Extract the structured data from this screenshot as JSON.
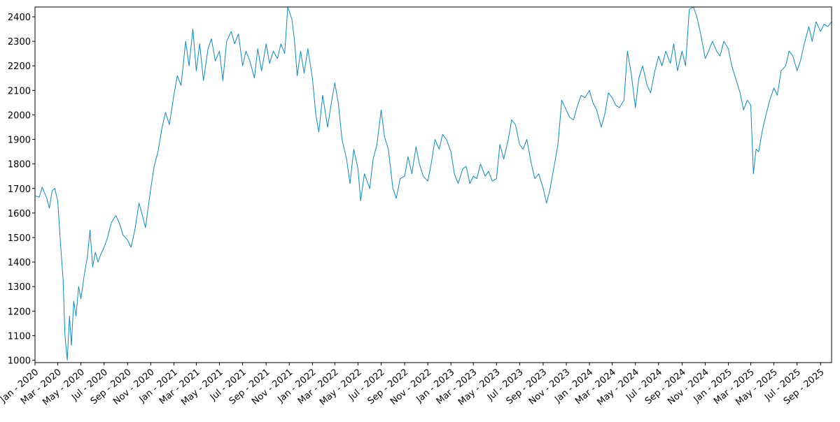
{
  "chart_data": {
    "type": "line",
    "title": "",
    "xlabel": "",
    "ylabel": "",
    "grid": false,
    "legend": false,
    "ylim": [
      990,
      2440
    ],
    "xlim": [
      "2020-01-01",
      "2025-09-30"
    ],
    "y_ticks": [
      1000,
      1100,
      1200,
      1300,
      1400,
      1500,
      1600,
      1700,
      1800,
      1900,
      2000,
      2100,
      2200,
      2300,
      2400
    ],
    "x_ticks": [
      {
        "date": "2020-01-01",
        "label": "Jan - 2020"
      },
      {
        "date": "2020-03-01",
        "label": "Mar - 2020"
      },
      {
        "date": "2020-05-01",
        "label": "May - 2020"
      },
      {
        "date": "2020-07-01",
        "label": "Jul - 2020"
      },
      {
        "date": "2020-09-01",
        "label": "Sep - 2020"
      },
      {
        "date": "2020-11-01",
        "label": "Nov - 2020"
      },
      {
        "date": "2021-01-01",
        "label": "Jan - 2021"
      },
      {
        "date": "2021-03-01",
        "label": "Mar - 2021"
      },
      {
        "date": "2021-05-01",
        "label": "May - 2021"
      },
      {
        "date": "2021-07-01",
        "label": "Jul - 2021"
      },
      {
        "date": "2021-09-01",
        "label": "Sep - 2021"
      },
      {
        "date": "2021-11-01",
        "label": "Nov - 2021"
      },
      {
        "date": "2022-01-01",
        "label": "Jan - 2022"
      },
      {
        "date": "2022-03-01",
        "label": "Mar - 2022"
      },
      {
        "date": "2022-05-01",
        "label": "May - 2022"
      },
      {
        "date": "2022-07-01",
        "label": "Jul - 2022"
      },
      {
        "date": "2022-09-01",
        "label": "Sep - 2022"
      },
      {
        "date": "2022-11-01",
        "label": "Nov - 2022"
      },
      {
        "date": "2023-01-01",
        "label": "Jan - 2023"
      },
      {
        "date": "2023-03-01",
        "label": "Mar - 2023"
      },
      {
        "date": "2023-05-01",
        "label": "May - 2023"
      },
      {
        "date": "2023-07-01",
        "label": "Jul - 2023"
      },
      {
        "date": "2023-09-01",
        "label": "Sep - 2023"
      },
      {
        "date": "2023-11-01",
        "label": "Nov - 2023"
      },
      {
        "date": "2024-01-01",
        "label": "Jan - 2024"
      },
      {
        "date": "2024-03-01",
        "label": "Mar - 2024"
      },
      {
        "date": "2024-05-01",
        "label": "May - 2024"
      },
      {
        "date": "2024-07-01",
        "label": "Jul - 2024"
      },
      {
        "date": "2024-09-01",
        "label": "Sep - 2024"
      },
      {
        "date": "2024-11-01",
        "label": "Nov - 2024"
      },
      {
        "date": "2025-01-01",
        "label": "Jan - 2025"
      },
      {
        "date": "2025-03-01",
        "label": "Mar - 2025"
      },
      {
        "date": "2025-05-01",
        "label": "May - 2025"
      },
      {
        "date": "2025-07-01",
        "label": "Jul - 2025"
      },
      {
        "date": "2025-09-01",
        "label": "Sep - 2025"
      }
    ],
    "series": [
      {
        "color": "#0a8ac6",
        "points": [
          [
            "2020-01-01",
            1670
          ],
          [
            "2020-01-12",
            1665
          ],
          [
            "2020-01-20",
            1705
          ],
          [
            "2020-02-01",
            1660
          ],
          [
            "2020-02-08",
            1620
          ],
          [
            "2020-02-15",
            1690
          ],
          [
            "2020-02-22",
            1700
          ],
          [
            "2020-03-01",
            1650
          ],
          [
            "2020-03-08",
            1480
          ],
          [
            "2020-03-15",
            1330
          ],
          [
            "2020-03-20",
            1100
          ],
          [
            "2020-03-26",
            1000
          ],
          [
            "2020-04-01",
            1180
          ],
          [
            "2020-04-06",
            1060
          ],
          [
            "2020-04-12",
            1240
          ],
          [
            "2020-04-18",
            1180
          ],
          [
            "2020-04-25",
            1300
          ],
          [
            "2020-05-01",
            1250
          ],
          [
            "2020-05-10",
            1350
          ],
          [
            "2020-05-18",
            1420
          ],
          [
            "2020-05-25",
            1530
          ],
          [
            "2020-06-01",
            1380
          ],
          [
            "2020-06-08",
            1440
          ],
          [
            "2020-06-15",
            1400
          ],
          [
            "2020-06-22",
            1430
          ],
          [
            "2020-07-01",
            1460
          ],
          [
            "2020-07-10",
            1500
          ],
          [
            "2020-07-20",
            1560
          ],
          [
            "2020-08-01",
            1590
          ],
          [
            "2020-08-10",
            1560
          ],
          [
            "2020-08-20",
            1510
          ],
          [
            "2020-09-01",
            1490
          ],
          [
            "2020-09-10",
            1460
          ],
          [
            "2020-09-20",
            1530
          ],
          [
            "2020-10-01",
            1640
          ],
          [
            "2020-10-10",
            1590
          ],
          [
            "2020-10-18",
            1540
          ],
          [
            "2020-11-01",
            1700
          ],
          [
            "2020-11-10",
            1790
          ],
          [
            "2020-11-20",
            1850
          ],
          [
            "2020-12-01",
            1950
          ],
          [
            "2020-12-10",
            2010
          ],
          [
            "2020-12-20",
            1960
          ],
          [
            "2021-01-01",
            2080
          ],
          [
            "2021-01-10",
            2160
          ],
          [
            "2021-01-20",
            2120
          ],
          [
            "2021-02-01",
            2300
          ],
          [
            "2021-02-10",
            2200
          ],
          [
            "2021-02-20",
            2350
          ],
          [
            "2021-03-01",
            2180
          ],
          [
            "2021-03-10",
            2290
          ],
          [
            "2021-03-20",
            2140
          ],
          [
            "2021-04-01",
            2270
          ],
          [
            "2021-04-10",
            2310
          ],
          [
            "2021-04-20",
            2220
          ],
          [
            "2021-05-01",
            2260
          ],
          [
            "2021-05-10",
            2140
          ],
          [
            "2021-05-20",
            2300
          ],
          [
            "2021-06-01",
            2340
          ],
          [
            "2021-06-10",
            2290
          ],
          [
            "2021-06-20",
            2330
          ],
          [
            "2021-07-01",
            2200
          ],
          [
            "2021-07-10",
            2260
          ],
          [
            "2021-07-20",
            2220
          ],
          [
            "2021-08-01",
            2150
          ],
          [
            "2021-08-10",
            2270
          ],
          [
            "2021-08-20",
            2180
          ],
          [
            "2021-09-01",
            2290
          ],
          [
            "2021-09-10",
            2210
          ],
          [
            "2021-09-20",
            2260
          ],
          [
            "2021-10-01",
            2230
          ],
          [
            "2021-10-10",
            2290
          ],
          [
            "2021-10-20",
            2250
          ],
          [
            "2021-10-28",
            2440
          ],
          [
            "2021-11-08",
            2390
          ],
          [
            "2021-11-15",
            2300
          ],
          [
            "2021-11-22",
            2160
          ],
          [
            "2021-12-01",
            2260
          ],
          [
            "2021-12-10",
            2170
          ],
          [
            "2021-12-20",
            2270
          ],
          [
            "2022-01-01",
            2150
          ],
          [
            "2022-01-10",
            2000
          ],
          [
            "2022-01-18",
            1930
          ],
          [
            "2022-01-28",
            2080
          ],
          [
            "2022-02-10",
            1950
          ],
          [
            "2022-02-20",
            2050
          ],
          [
            "2022-03-01",
            2130
          ],
          [
            "2022-03-10",
            2050
          ],
          [
            "2022-03-20",
            1900
          ],
          [
            "2022-04-01",
            1820
          ],
          [
            "2022-04-10",
            1720
          ],
          [
            "2022-04-20",
            1860
          ],
          [
            "2022-05-01",
            1780
          ],
          [
            "2022-05-08",
            1650
          ],
          [
            "2022-05-18",
            1760
          ],
          [
            "2022-06-01",
            1700
          ],
          [
            "2022-06-10",
            1820
          ],
          [
            "2022-06-20",
            1880
          ],
          [
            "2022-07-01",
            2020
          ],
          [
            "2022-07-10",
            1910
          ],
          [
            "2022-07-20",
            1860
          ],
          [
            "2022-08-01",
            1700
          ],
          [
            "2022-08-10",
            1660
          ],
          [
            "2022-08-20",
            1740
          ],
          [
            "2022-09-01",
            1750
          ],
          [
            "2022-09-10",
            1830
          ],
          [
            "2022-09-20",
            1760
          ],
          [
            "2022-10-01",
            1870
          ],
          [
            "2022-10-10",
            1800
          ],
          [
            "2022-10-20",
            1750
          ],
          [
            "2022-11-01",
            1730
          ],
          [
            "2022-11-10",
            1800
          ],
          [
            "2022-11-20",
            1900
          ],
          [
            "2022-12-01",
            1860
          ],
          [
            "2022-12-10",
            1920
          ],
          [
            "2022-12-20",
            1900
          ],
          [
            "2023-01-01",
            1850
          ],
          [
            "2023-01-10",
            1760
          ],
          [
            "2023-01-20",
            1720
          ],
          [
            "2023-02-01",
            1780
          ],
          [
            "2023-02-10",
            1790
          ],
          [
            "2023-02-20",
            1720
          ],
          [
            "2023-03-01",
            1750
          ],
          [
            "2023-03-10",
            1740
          ],
          [
            "2023-03-20",
            1800
          ],
          [
            "2023-04-01",
            1750
          ],
          [
            "2023-04-10",
            1770
          ],
          [
            "2023-04-20",
            1730
          ],
          [
            "2023-05-01",
            1740
          ],
          [
            "2023-05-10",
            1880
          ],
          [
            "2023-05-20",
            1820
          ],
          [
            "2023-06-01",
            1900
          ],
          [
            "2023-06-10",
            1980
          ],
          [
            "2023-06-20",
            1960
          ],
          [
            "2023-07-01",
            1880
          ],
          [
            "2023-07-10",
            1860
          ],
          [
            "2023-07-20",
            1900
          ],
          [
            "2023-08-01",
            1800
          ],
          [
            "2023-08-10",
            1740
          ],
          [
            "2023-08-20",
            1760
          ],
          [
            "2023-09-01",
            1700
          ],
          [
            "2023-09-10",
            1640
          ],
          [
            "2023-09-18",
            1690
          ],
          [
            "2023-10-01",
            1800
          ],
          [
            "2023-10-10",
            1880
          ],
          [
            "2023-10-20",
            2060
          ],
          [
            "2023-11-01",
            2020
          ],
          [
            "2023-11-10",
            1990
          ],
          [
            "2023-11-20",
            1980
          ],
          [
            "2023-12-01",
            2040
          ],
          [
            "2023-12-10",
            2080
          ],
          [
            "2023-12-20",
            2070
          ],
          [
            "2024-01-01",
            2100
          ],
          [
            "2024-01-10",
            2050
          ],
          [
            "2024-01-20",
            2020
          ],
          [
            "2024-02-01",
            1950
          ],
          [
            "2024-02-10",
            2000
          ],
          [
            "2024-02-20",
            2090
          ],
          [
            "2024-03-01",
            2070
          ],
          [
            "2024-03-10",
            2040
          ],
          [
            "2024-03-20",
            2030
          ],
          [
            "2024-04-01",
            2060
          ],
          [
            "2024-04-10",
            2260
          ],
          [
            "2024-04-20",
            2170
          ],
          [
            "2024-05-01",
            2030
          ],
          [
            "2024-05-10",
            2150
          ],
          [
            "2024-05-20",
            2200
          ],
          [
            "2024-06-01",
            2120
          ],
          [
            "2024-06-10",
            2090
          ],
          [
            "2024-06-20",
            2170
          ],
          [
            "2024-07-01",
            2240
          ],
          [
            "2024-07-10",
            2200
          ],
          [
            "2024-07-20",
            2260
          ],
          [
            "2024-08-01",
            2210
          ],
          [
            "2024-08-10",
            2290
          ],
          [
            "2024-08-20",
            2180
          ],
          [
            "2024-09-01",
            2260
          ],
          [
            "2024-09-10",
            2200
          ],
          [
            "2024-09-20",
            2430
          ],
          [
            "2024-10-01",
            2440
          ],
          [
            "2024-10-10",
            2400
          ],
          [
            "2024-10-20",
            2330
          ],
          [
            "2024-11-01",
            2230
          ],
          [
            "2024-11-10",
            2260
          ],
          [
            "2024-11-20",
            2300
          ],
          [
            "2024-12-01",
            2260
          ],
          [
            "2024-12-10",
            2240
          ],
          [
            "2024-12-20",
            2300
          ],
          [
            "2025-01-01",
            2270
          ],
          [
            "2025-01-10",
            2200
          ],
          [
            "2025-01-20",
            2150
          ],
          [
            "2025-02-01",
            2090
          ],
          [
            "2025-02-10",
            2020
          ],
          [
            "2025-02-20",
            2060
          ],
          [
            "2025-03-01",
            2040
          ],
          [
            "2025-03-08",
            1760
          ],
          [
            "2025-03-15",
            1860
          ],
          [
            "2025-03-22",
            1850
          ],
          [
            "2025-04-01",
            1940
          ],
          [
            "2025-04-10",
            2000
          ],
          [
            "2025-04-20",
            2060
          ],
          [
            "2025-05-01",
            2110
          ],
          [
            "2025-05-10",
            2080
          ],
          [
            "2025-05-20",
            2180
          ],
          [
            "2025-06-01",
            2200
          ],
          [
            "2025-06-10",
            2260
          ],
          [
            "2025-06-20",
            2240
          ],
          [
            "2025-07-01",
            2180
          ],
          [
            "2025-07-10",
            2220
          ],
          [
            "2025-07-20",
            2290
          ],
          [
            "2025-08-01",
            2360
          ],
          [
            "2025-08-10",
            2300
          ],
          [
            "2025-08-20",
            2380
          ],
          [
            "2025-09-01",
            2340
          ],
          [
            "2025-09-10",
            2370
          ],
          [
            "2025-09-20",
            2360
          ],
          [
            "2025-09-30",
            2380
          ]
        ]
      }
    ]
  }
}
